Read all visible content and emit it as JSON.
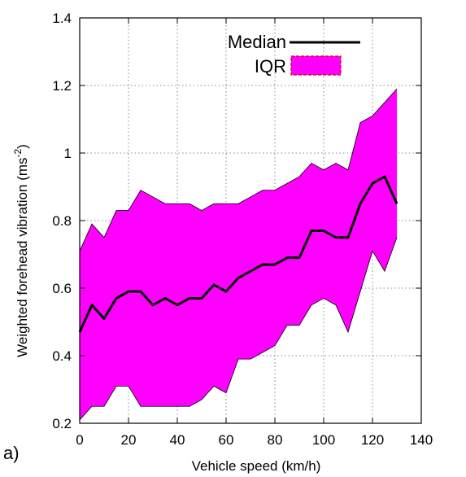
{
  "panel_label": "a)",
  "chart_data": {
    "type": "area",
    "title": "",
    "xlabel": "Vehicle speed (km/h)",
    "ylabel": "Weighted forehead vibration (ms",
    "ylabel_superscript": "-2",
    "ylabel_suffix": ")",
    "xlim": [
      0,
      140
    ],
    "ylim": [
      0.2,
      1.4
    ],
    "xticks": [
      0,
      20,
      40,
      60,
      80,
      100,
      120,
      140
    ],
    "yticks": [
      0.2,
      0.4,
      0.6,
      0.8,
      1.0,
      1.2,
      1.4
    ],
    "xtick_labels": [
      "0",
      "20",
      "40",
      "60",
      "80",
      "100",
      "120",
      "140"
    ],
    "ytick_labels": [
      "0.2",
      "0.4",
      "0.6",
      "0.8",
      "1",
      "1.2",
      "1.4"
    ],
    "grid": true,
    "legend_position": "top-right",
    "x": [
      0,
      5,
      10,
      15,
      20,
      25,
      30,
      35,
      40,
      45,
      50,
      55,
      60,
      65,
      70,
      75,
      80,
      85,
      90,
      95,
      100,
      105,
      110,
      115,
      120,
      125,
      130
    ],
    "series": [
      {
        "name": "Median",
        "kind": "line",
        "color": "#000000",
        "values": [
          0.47,
          0.55,
          0.51,
          0.57,
          0.59,
          0.59,
          0.55,
          0.57,
          0.55,
          0.57,
          0.57,
          0.61,
          0.59,
          0.63,
          0.65,
          0.67,
          0.67,
          0.69,
          0.69,
          0.77,
          0.77,
          0.75,
          0.75,
          0.85,
          0.91,
          0.93,
          0.85
        ]
      },
      {
        "name": "IQR",
        "kind": "band",
        "color": "#ff00ff",
        "edge_color": "#cc0000",
        "lower": [
          0.21,
          0.25,
          0.25,
          0.31,
          0.31,
          0.25,
          0.25,
          0.25,
          0.25,
          0.25,
          0.27,
          0.31,
          0.29,
          0.39,
          0.39,
          0.41,
          0.43,
          0.49,
          0.49,
          0.55,
          0.57,
          0.55,
          0.47,
          0.59,
          0.71,
          0.65,
          0.75
        ],
        "upper": [
          0.71,
          0.79,
          0.75,
          0.83,
          0.83,
          0.89,
          0.87,
          0.85,
          0.85,
          0.85,
          0.83,
          0.85,
          0.85,
          0.85,
          0.87,
          0.89,
          0.89,
          0.91,
          0.93,
          0.97,
          0.95,
          0.97,
          0.95,
          1.09,
          1.11,
          1.15,
          1.19
        ]
      }
    ]
  }
}
